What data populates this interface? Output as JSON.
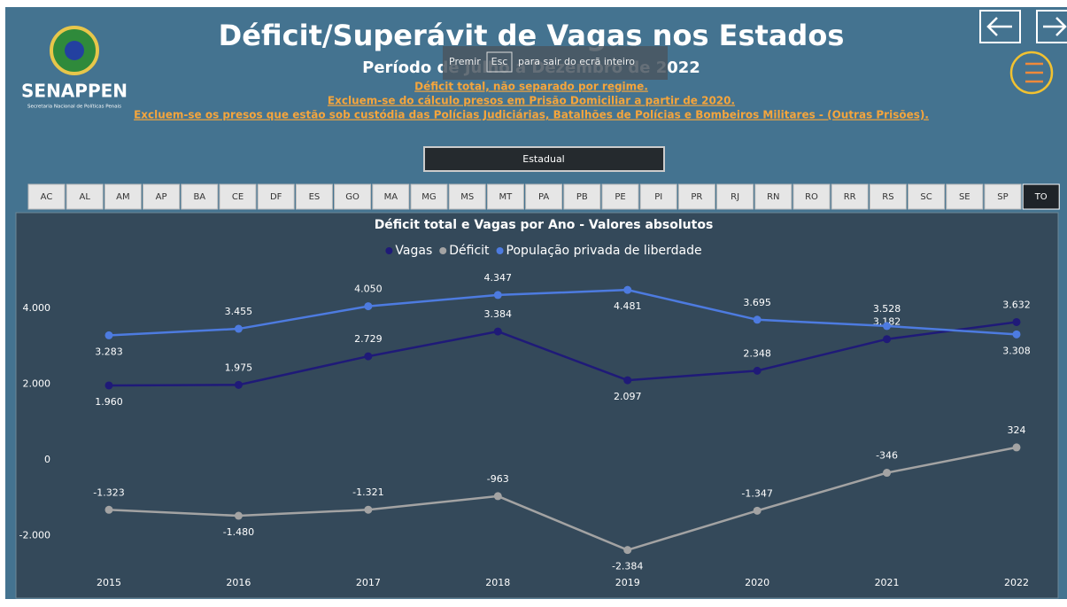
{
  "header": {
    "logo_text": "SENAPPEN",
    "logo_subtext": "Secretaria Nacional de Políticas Penais",
    "title": "Déficit/Superávit de Vagas nos Estados",
    "subtitle": "Período de Julho a Dezembro de 2022",
    "notes": [
      "Déficit total, não separado por regime.",
      "Excluem-se do cálculo presos em Prisão Domiciliar a partir de 2020.",
      "Excluem-se os presos que estão sob custódia das Polícias Judiciárias, Batalhões de Polícias e Bombeiros Militares - (Outras Prisões)."
    ],
    "esc_hint": [
      "Premir",
      "Esc",
      "para sair do ecrã inteiro"
    ]
  },
  "filter": {
    "dropdown": "Estadual",
    "states": [
      "AC",
      "AL",
      "AM",
      "AP",
      "BA",
      "CE",
      "DF",
      "ES",
      "GO",
      "MA",
      "MG",
      "MS",
      "MT",
      "PA",
      "PB",
      "PE",
      "PI",
      "PR",
      "RJ",
      "RN",
      "RO",
      "RR",
      "RS",
      "SC",
      "SE",
      "SP",
      "TO"
    ],
    "selected": "TO"
  },
  "chart_data": {
    "type": "line",
    "title": "Déficit total e Vagas por Ano - Valores absolutos",
    "categories": [
      "2015",
      "2016",
      "2017",
      "2018",
      "2019",
      "2020",
      "2021",
      "2022"
    ],
    "series": [
      {
        "name": "Vagas",
        "color": "#1f1a78",
        "values": [
          1960,
          1975,
          2729,
          3384,
          2097,
          2348,
          3182,
          3632
        ],
        "value_labels": [
          "1.960",
          "1.975",
          "2.729",
          "3.384",
          "2.097",
          "2.348",
          "3.182",
          "3.632"
        ]
      },
      {
        "name": "Déficit",
        "color": "#a3a3a3",
        "values": [
          -1323,
          -1480,
          -1321,
          -963,
          -2384,
          -1347,
          -346,
          324
        ],
        "value_labels": [
          "-1.323",
          "-1.480",
          "-1.321",
          "-963",
          "-2.384",
          "-1.347",
          "-346",
          "324"
        ]
      },
      {
        "name": "População privada de liberdade",
        "color": "#4d7be0",
        "values": [
          3283,
          3455,
          4050,
          4347,
          4481,
          3695,
          3528,
          3308
        ],
        "value_labels": [
          "3.283",
          "3.455",
          "4.050",
          "4.347",
          "4.481",
          "3.695",
          "3.528",
          "3.308"
        ]
      }
    ],
    "ylim": [
      -3000,
      5000
    ],
    "yticks": [
      {
        "value": -2000,
        "label": "-2.000"
      },
      0,
      {
        "value": 2000,
        "label": "2.000"
      },
      {
        "value": 4000,
        "label": "4.000"
      }
    ],
    "grid": false
  }
}
